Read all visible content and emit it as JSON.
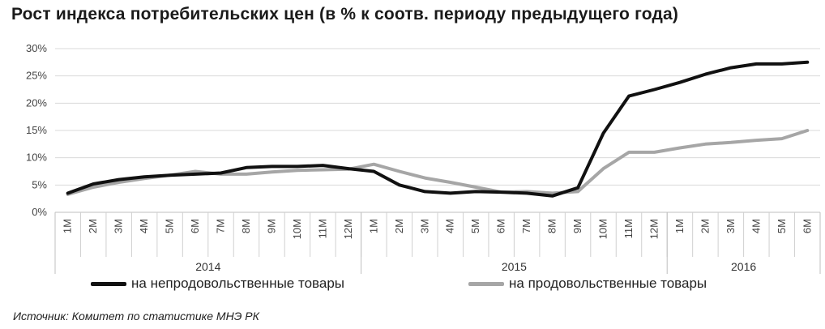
{
  "chart_data": {
    "type": "line",
    "title": "Рост индекса потребительских цен (в %  к соотв. периоду предыдущего года)",
    "y_ticks": [
      "0%",
      "5%",
      "10%",
      "15%",
      "20%",
      "25%",
      "30%"
    ],
    "ylim": [
      0,
      30
    ],
    "grid": true,
    "categories": [
      "1M",
      "2M",
      "3M",
      "4M",
      "5M",
      "6M",
      "7M",
      "8M",
      "9M",
      "10M",
      "11M",
      "12M",
      "1M",
      "2M",
      "3M",
      "4M",
      "5M",
      "6M",
      "7M",
      "8M",
      "9M",
      "10M",
      "11M",
      "12M",
      "1M",
      "2M",
      "3M",
      "4M",
      "5M",
      "6M"
    ],
    "groups": [
      {
        "label": "2014",
        "count": 12
      },
      {
        "label": "2015",
        "count": 12
      },
      {
        "label": "2016",
        "count": 6
      }
    ],
    "series": [
      {
        "name": "на непродовольственные товары",
        "color": "#111111",
        "values": [
          3.5,
          5.2,
          6.0,
          6.5,
          6.8,
          7.0,
          7.2,
          8.2,
          8.4,
          8.4,
          8.6,
          8.0,
          7.5,
          5.0,
          3.8,
          3.5,
          3.8,
          3.7,
          3.5,
          3.0,
          4.5,
          14.5,
          21.3,
          22.5,
          23.8,
          25.3,
          26.5,
          27.2,
          27.2,
          27.5
        ]
      },
      {
        "name": "на продовольственные товары",
        "color": "#a6a6a6",
        "values": [
          3.3,
          4.6,
          5.5,
          6.2,
          6.8,
          7.5,
          7.0,
          7.0,
          7.4,
          7.7,
          7.8,
          7.9,
          8.8,
          7.5,
          6.3,
          5.5,
          4.6,
          3.7,
          3.8,
          3.5,
          3.8,
          8.0,
          11.0,
          11.0,
          11.8,
          12.5,
          12.8,
          13.2,
          13.5,
          15.0
        ]
      }
    ],
    "legend_position": "bottom"
  },
  "source": "Источник: Комитет по статистике МНЭ РК"
}
